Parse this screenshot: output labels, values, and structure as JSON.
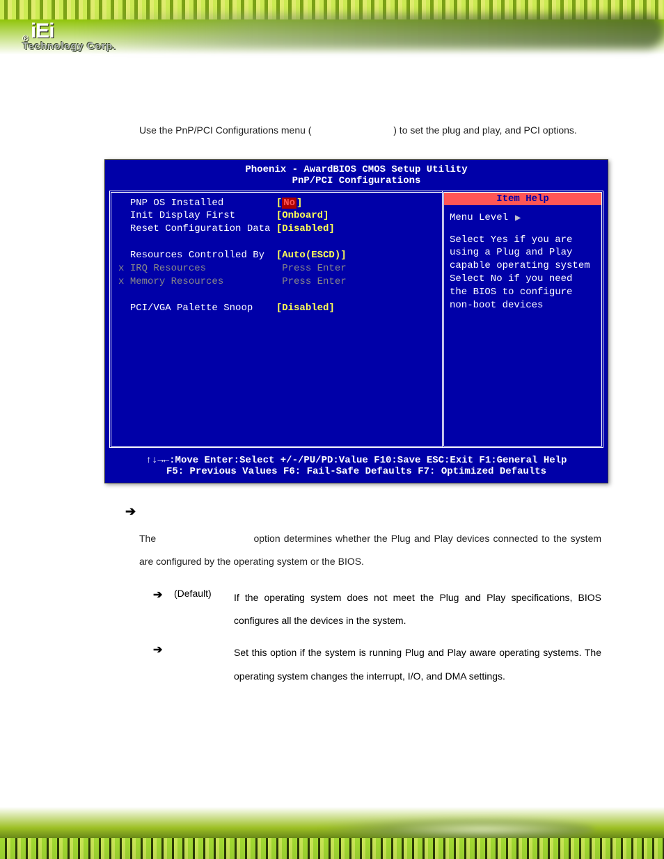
{
  "header": {
    "logo_brand": "iEi",
    "logo_sub": "Technology Corp."
  },
  "intro": {
    "text1": "Use the PnP/PCI Configurations menu (",
    "text2": ") to set the plug and play, and PCI options."
  },
  "bios": {
    "title1": "Phoenix - AwardBIOS CMOS Setup Utility",
    "title2": "PnP/PCI Configurations",
    "rows": [
      {
        "label": "PNP OS Installed",
        "value": "No",
        "style": "red",
        "prefix": "  "
      },
      {
        "label": "Init Display First",
        "value": "Onboard",
        "style": "yellow",
        "prefix": "  "
      },
      {
        "label": "Reset Configuration Data",
        "value": "Disabled",
        "style": "yellow",
        "prefix": "  "
      },
      {
        "label": "",
        "value": "",
        "style": "blank",
        "prefix": ""
      },
      {
        "label": "Resources Controlled By",
        "value": "Auto(ESCD)",
        "style": "yellow",
        "prefix": "  "
      },
      {
        "label": "IRQ Resources",
        "value": "Press Enter",
        "style": "gray",
        "prefix": "x "
      },
      {
        "label": "Memory Resources",
        "value": "Press Enter",
        "style": "gray",
        "prefix": "x "
      },
      {
        "label": "",
        "value": "",
        "style": "blank",
        "prefix": ""
      },
      {
        "label": "PCI/VGA Palette Snoop",
        "value": "Disabled",
        "style": "yellow",
        "prefix": "  "
      }
    ],
    "help_title": "Item Help",
    "help_level": "Menu Level",
    "help_text": "Select Yes if you are using a Plug and Play capable operating system Select No if you need the BIOS to configure non-boot devices",
    "footer1": "↑↓→←:Move  Enter:Select  +/-/PU/PD:Value  F10:Save  ESC:Exit  F1:General Help",
    "footer2": "F5: Previous Values    F6: Fail-Safe Defaults    F7: Optimized Defaults"
  },
  "section": {
    "para1a": "The",
    "para1b": "option determines whether the Plug and Play devices connected to the system are configured by the operating system or the BIOS."
  },
  "options": [
    {
      "default": "(Default)",
      "desc": "If the operating system does not meet the Plug and Play specifications, BIOS configures all the devices in the system."
    },
    {
      "default": "",
      "desc": "Set this option if the system is running Plug and Play aware operating systems. The operating system changes the interrupt, I/O, and DMA settings."
    }
  ],
  "colors": {
    "bios_bg": "#0000a8",
    "bios_yellow": "#ffff55",
    "bios_red_fg": "#ff5555",
    "bios_gray": "#888888"
  }
}
